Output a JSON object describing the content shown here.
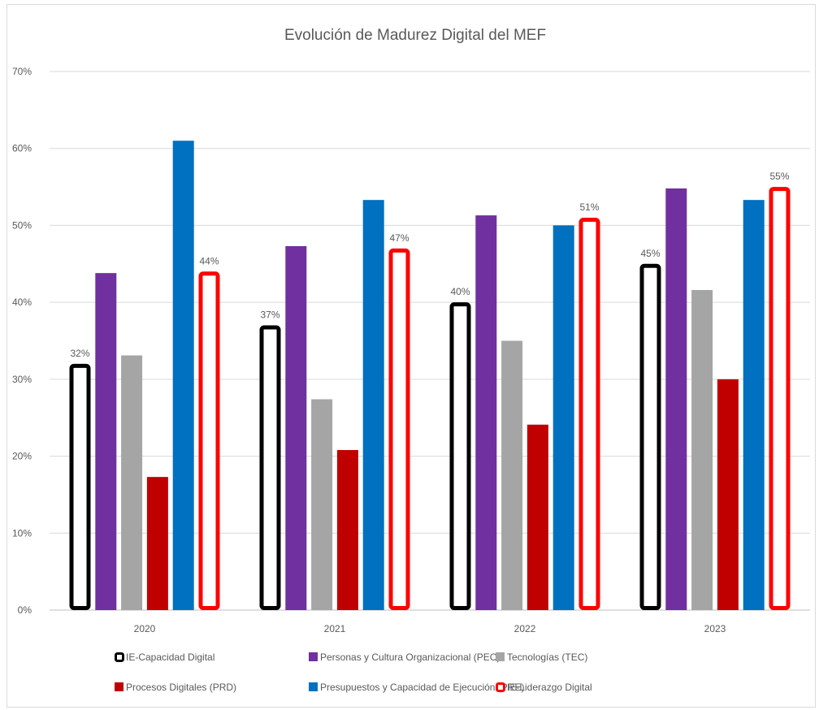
{
  "chart_data": {
    "type": "bar",
    "title": "Evolución de Madurez Digital del MEF",
    "categories": [
      "2020",
      "2021",
      "2022",
      "2023"
    ],
    "ylim": [
      0,
      70
    ],
    "y_ticks": [
      "0%",
      "10%",
      "20%",
      "30%",
      "40%",
      "50%",
      "60%",
      "70%"
    ],
    "grid": true,
    "legend_position": "bottom",
    "series": [
      {
        "name": "IE-Capacidad Digital",
        "values": [
          32,
          37,
          40,
          45
        ],
        "color": "#000000",
        "style": "outline",
        "data_labels": [
          "32%",
          "37%",
          "40%",
          "45%"
        ]
      },
      {
        "name": "Personas y Cultura Organizacional (PEC)",
        "values": [
          43.8,
          47.3,
          51.3,
          54.8
        ],
        "color": "#7030A0",
        "style": "filled"
      },
      {
        "name": "Tecnologías (TEC)",
        "values": [
          33.1,
          27.4,
          35,
          41.6
        ],
        "color": "#A5A5A5",
        "style": "filled"
      },
      {
        "name": "Procesos Digitales (PRD)",
        "values": [
          17.3,
          20.8,
          24.1,
          30
        ],
        "color": "#C00000",
        "style": "filled"
      },
      {
        "name": "Presupuestos y Capacidad de  Ejecución (PRE)",
        "values": [
          61,
          53.3,
          50,
          53.3
        ],
        "color": "#0070C0",
        "style": "filled"
      },
      {
        "name": "IE-Liderazgo Digital",
        "values": [
          44,
          47,
          51,
          55
        ],
        "color": "#FF0000",
        "style": "outline",
        "data_labels": [
          "44%",
          "47%",
          "51%",
          "55%"
        ]
      }
    ]
  }
}
